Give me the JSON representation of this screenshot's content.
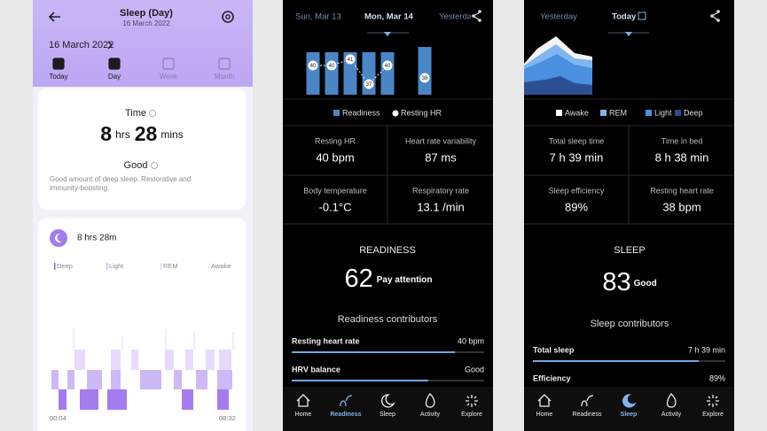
{
  "sleep_day": {
    "header": {
      "title": "Sleep (Day)",
      "subtitle": "16 March 2022"
    },
    "date": "16 March 2022",
    "tabs": [
      "Today",
      "Day",
      "Week",
      "Month"
    ],
    "time": {
      "label": "Time",
      "hours": 8,
      "hours_unit": "hrs",
      "minutes": 28,
      "minutes_unit": "mins"
    },
    "quality": {
      "label": "Good",
      "description": [
        "Good amount of deep sleep. Restorative and",
        "immunity-boosting."
      ]
    },
    "duration": "8 hrs 28m",
    "stages": [
      "Deep",
      "Light",
      "REM",
      "Awake"
    ],
    "time_axis": [
      "00:04",
      "08:32"
    ]
  },
  "readiness": {
    "dates": [
      "Sun, Mar 13",
      "Mon, Mar 14",
      "Yesterday"
    ],
    "chart": {
      "legend": [
        "Readiness",
        "Resting HR"
      ],
      "resting_hr": [
        40,
        40,
        41,
        37,
        40,
        38
      ]
    },
    "metrics": [
      {
        "label": "Resting HR",
        "value": "40 bpm"
      },
      {
        "label": "Heart rate variability",
        "value": "87 ms"
      },
      {
        "label": "Body temperature",
        "value": "-0.1°C"
      },
      {
        "label": "Respiratory rate",
        "value": "13.1 /min"
      }
    ],
    "score": {
      "title": "READINESS",
      "value": 62,
      "status": "Pay attention"
    },
    "contributors": {
      "title": "Readiness contributors",
      "items": [
        {
          "label": "Resting heart rate",
          "value": "40 bpm"
        },
        {
          "label": "HRV balance",
          "value": "Good"
        }
      ]
    },
    "nav": [
      "Home",
      "Readiness",
      "Sleep",
      "Activity",
      "Explore"
    ]
  },
  "sleep": {
    "dates": [
      "Yesterday",
      "Today"
    ],
    "legend": [
      "Awake",
      "REM",
      "Light",
      "Deep"
    ],
    "metrics": [
      {
        "label": "Total sleep time",
        "value": "7 h 39 min"
      },
      {
        "label": "Time in bed",
        "value": "8 h 38 min"
      },
      {
        "label": "Sleep efficiency",
        "value": "89%"
      },
      {
        "label": "Resting heart rate",
        "value": "38 bpm"
      }
    ],
    "score": {
      "title": "SLEEP",
      "value": 83,
      "status": "Good"
    },
    "contributors": {
      "title": "Sleep contributors",
      "items": [
        {
          "label": "Total sleep",
          "value": "7 h 39 min"
        },
        {
          "label": "Efficiency",
          "value": "89%"
        }
      ]
    },
    "nav": [
      "Home",
      "Readiness",
      "Sleep",
      "Activity",
      "Explore"
    ]
  }
}
